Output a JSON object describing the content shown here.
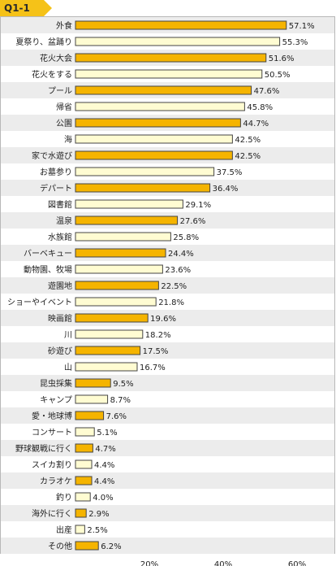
{
  "header": {
    "badge": "Q1-1"
  },
  "colors": {
    "accent": "#f5b400",
    "light": "#fffcd2",
    "stripe": "#ececec",
    "border": "#444444"
  },
  "chart_data": {
    "type": "bar",
    "orientation": "horizontal",
    "categories": [
      "外食",
      "夏祭り、盆踊り",
      "花火大会",
      "花火をする",
      "プール",
      "帰省",
      "公園",
      "海",
      "家で水遊び",
      "お墓参り",
      "デパート",
      "図書館",
      "温泉",
      "水族館",
      "バーベキュー",
      "動物園、牧場",
      "遊園地",
      "ショーやイベント",
      "映画館",
      "川",
      "砂遊び",
      "山",
      "昆虫採集",
      "キャンプ",
      "愛・地球博",
      "コンサート",
      "野球観戦に行く",
      "スイカ割り",
      "カラオケ",
      "釣り",
      "海外に行く",
      "出産",
      "その他"
    ],
    "values": [
      57.1,
      55.3,
      51.6,
      50.5,
      47.6,
      45.8,
      44.7,
      42.5,
      42.5,
      37.5,
      36.4,
      29.1,
      27.6,
      25.8,
      24.4,
      23.6,
      22.5,
      21.8,
      19.6,
      18.2,
      17.5,
      16.7,
      9.5,
      8.7,
      7.6,
      5.1,
      4.7,
      4.4,
      4.4,
      4.0,
      2.9,
      2.5,
      6.2
    ],
    "value_labels": [
      "57.1%",
      "55.3%",
      "51.6%",
      "50.5%",
      "47.6%",
      "45.8%",
      "44.7%",
      "42.5%",
      "42.5%",
      "37.5%",
      "36.4%",
      "29.1%",
      "27.6%",
      "25.8%",
      "24.4%",
      "23.6%",
      "22.5%",
      "21.8%",
      "19.6%",
      "18.2%",
      "17.5%",
      "16.7%",
      "9.5%",
      "8.7%",
      "7.6%",
      "5.1%",
      "4.7%",
      "4.4%",
      "4.4%",
      "4.0%",
      "2.9%",
      "2.5%",
      "6.2%"
    ],
    "xticks": [
      20,
      40,
      60
    ],
    "xtick_labels": [
      "20%",
      "40%",
      "60%"
    ],
    "xlim": [
      0,
      75
    ],
    "unit": "%"
  }
}
